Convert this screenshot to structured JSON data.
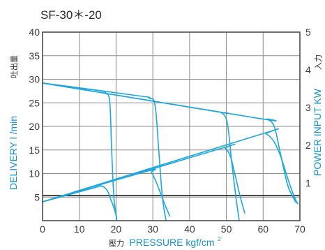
{
  "chart_data": {
    "type": "line",
    "title": "SF-30＊-20",
    "xlabel_prefix": "壓力",
    "xlabel": "PRESSURE kgf/cm",
    "xlabel_sup": "2",
    "ylabel_left": "DELIVERY l /min",
    "ylabel_left_jp": "吐出量",
    "ylabel_right": "POWER INPUT KW",
    "ylabel_right_jp": "入力",
    "xlim": [
      0,
      70
    ],
    "ylim_left": [
      0,
      40
    ],
    "ylim_right": [
      0,
      5
    ],
    "grid": true,
    "x_ticks": [
      0,
      10,
      20,
      30,
      40,
      50,
      60,
      70
    ],
    "x_tick_labels": [
      "0",
      "10",
      "20",
      "30",
      "40",
      "50",
      "60",
      "70"
    ],
    "y_left_ticks": [
      5,
      10,
      15,
      20,
      25,
      30,
      35,
      40
    ],
    "y_left_tick_labels": [
      "5",
      "10",
      "15",
      "20",
      "25",
      "30",
      "35",
      "40"
    ],
    "y_right_ticks": [
      1,
      2,
      3,
      4,
      5
    ],
    "y_right_tick_labels": [
      "1",
      "2",
      "3",
      "4",
      "5"
    ],
    "reference_line_y": 5.3,
    "colors": {
      "curve": "#1ea6de",
      "axis_label": "#1793c9",
      "grid": "#8c8c8c",
      "frame": "#4d4d4d",
      "reference_line": "#1a1a1a"
    },
    "series": [
      {
        "axis": "left",
        "points": [
          [
            0,
            29.2
          ],
          [
            14.5,
            27.7
          ],
          [
            16,
            27.5
          ],
          [
            17.4,
            27.0
          ],
          [
            18.3,
            25
          ],
          [
            18.8,
            15
          ],
          [
            19.4,
            5
          ],
          [
            20,
            1.5
          ],
          [
            20.2,
            0
          ]
        ]
      },
      {
        "axis": "left",
        "points": [
          [
            0,
            29.2
          ],
          [
            26,
            26.5
          ],
          [
            29,
            26.0
          ],
          [
            30.6,
            24.5
          ],
          [
            31.6,
            15
          ],
          [
            32.6,
            5
          ],
          [
            33.6,
            0
          ]
        ]
      },
      {
        "axis": "left",
        "points": [
          [
            0,
            29.2
          ],
          [
            46,
            23.3
          ],
          [
            48.8,
            22.8
          ],
          [
            50.3,
            20.5
          ],
          [
            51.5,
            12
          ],
          [
            52.6,
            5
          ],
          [
            53.5,
            0
          ]
        ]
      },
      {
        "axis": "left",
        "points": [
          [
            0,
            29.2
          ],
          [
            58,
            21.8
          ],
          [
            61,
            21.5
          ],
          [
            63,
            20.0
          ],
          [
            64.5,
            15
          ],
          [
            66.5,
            8
          ],
          [
            67.8,
            5.5
          ],
          [
            69,
            3.8
          ]
        ]
      },
      {
        "axis": "right",
        "points": [
          [
            0,
            0.5
          ],
          [
            14,
            0.87
          ],
          [
            16,
            0.92
          ],
          [
            17.6,
            0.8
          ],
          [
            18.6,
            0.55
          ],
          [
            19.4,
            0.35
          ],
          [
            20.1,
            0.1
          ]
        ]
      },
      {
        "axis": "right",
        "points": [
          [
            0,
            0.5
          ],
          [
            28,
            1.3
          ],
          [
            29.6,
            1.27
          ],
          [
            30.8,
            1.05
          ],
          [
            32.2,
            0.7
          ],
          [
            33.4,
            0.4
          ],
          [
            34.6,
            0.12
          ]
        ]
      },
      {
        "axis": "right",
        "points": [
          [
            0,
            0.5
          ],
          [
            48,
            1.9
          ],
          [
            49.7,
            1.92
          ],
          [
            51.1,
            1.7
          ],
          [
            52.4,
            1.2
          ],
          [
            53.6,
            0.7
          ],
          [
            55,
            0.2
          ]
        ]
      },
      {
        "axis": "right",
        "points": [
          [
            0,
            0.5
          ],
          [
            59,
            2.28
          ],
          [
            60.8,
            2.3
          ],
          [
            62.8,
            2.12
          ],
          [
            64.8,
            1.7
          ],
          [
            66.6,
            1.15
          ],
          [
            68.4,
            0.65
          ],
          [
            69.4,
            0.45
          ]
        ]
      }
    ]
  }
}
